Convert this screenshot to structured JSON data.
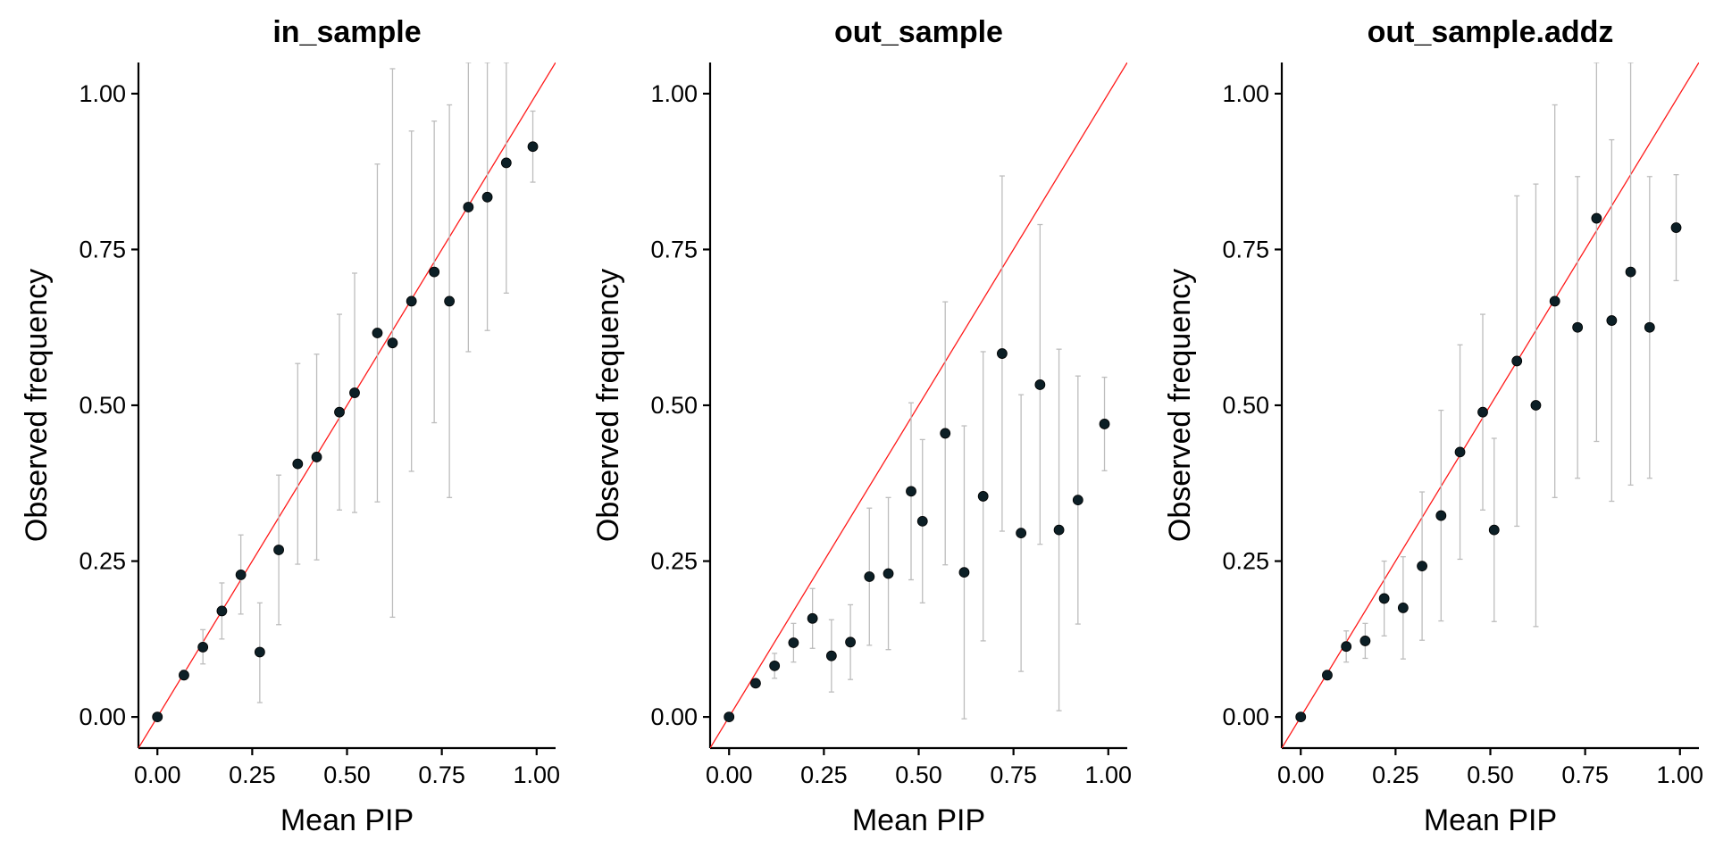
{
  "chart_data": [
    {
      "type": "scatter",
      "title": "in_sample",
      "xlabel": "Mean PIP",
      "ylabel": "Observed frequency",
      "xlim": [
        -0.05,
        1.05
      ],
      "ylim": [
        -0.05,
        1.05
      ],
      "xticks": [
        "0.00",
        "0.25",
        "0.50",
        "0.75",
        "1.00"
      ],
      "yticks": [
        "0.00",
        "0.25",
        "0.50",
        "0.75",
        "1.00"
      ],
      "reference_line": "y = x",
      "reference_color": "#ff1a1a",
      "points": [
        {
          "x": 0.0,
          "y": 0.0,
          "lo": 0.0,
          "hi": 0.0
        },
        {
          "x": 0.07,
          "y": 0.067,
          "lo": 0.06,
          "hi": 0.075
        },
        {
          "x": 0.12,
          "y": 0.112,
          "lo": 0.085,
          "hi": 0.14
        },
        {
          "x": 0.17,
          "y": 0.17,
          "lo": 0.125,
          "hi": 0.215
        },
        {
          "x": 0.22,
          "y": 0.228,
          "lo": 0.165,
          "hi": 0.292
        },
        {
          "x": 0.27,
          "y": 0.104,
          "lo": 0.023,
          "hi": 0.183
        },
        {
          "x": 0.32,
          "y": 0.268,
          "lo": 0.148,
          "hi": 0.388
        },
        {
          "x": 0.37,
          "y": 0.406,
          "lo": 0.245,
          "hi": 0.567
        },
        {
          "x": 0.42,
          "y": 0.417,
          "lo": 0.252,
          "hi": 0.582
        },
        {
          "x": 0.48,
          "y": 0.489,
          "lo": 0.332,
          "hi": 0.646
        },
        {
          "x": 0.52,
          "y": 0.52,
          "lo": 0.328,
          "hi": 0.712
        },
        {
          "x": 0.58,
          "y": 0.616,
          "lo": 0.345,
          "hi": 0.887
        },
        {
          "x": 0.62,
          "y": 0.6,
          "lo": 0.16,
          "hi": 1.04
        },
        {
          "x": 0.67,
          "y": 0.667,
          "lo": 0.394,
          "hi": 0.94
        },
        {
          "x": 0.73,
          "y": 0.714,
          "lo": 0.472,
          "hi": 0.956
        },
        {
          "x": 0.77,
          "y": 0.667,
          "lo": 0.352,
          "hi": 0.982
        },
        {
          "x": 0.82,
          "y": 0.818,
          "lo": 0.586,
          "hi": 1.05
        },
        {
          "x": 0.87,
          "y": 0.834,
          "lo": 0.62,
          "hi": 1.05
        },
        {
          "x": 0.92,
          "y": 0.889,
          "lo": 0.68,
          "hi": 1.05
        },
        {
          "x": 0.99,
          "y": 0.915,
          "lo": 0.858,
          "hi": 0.972
        }
      ]
    },
    {
      "type": "scatter",
      "title": "out_sample",
      "xlabel": "Mean PIP",
      "ylabel": "Observed frequency",
      "xlim": [
        -0.05,
        1.05
      ],
      "ylim": [
        -0.05,
        1.05
      ],
      "xticks": [
        "0.00",
        "0.25",
        "0.50",
        "0.75",
        "1.00"
      ],
      "yticks": [
        "0.00",
        "0.25",
        "0.50",
        "0.75",
        "1.00"
      ],
      "reference_line": "y = x",
      "reference_color": "#ff1a1a",
      "points": [
        {
          "x": 0.0,
          "y": 0.0,
          "lo": 0.0,
          "hi": 0.0
        },
        {
          "x": 0.07,
          "y": 0.054,
          "lo": 0.048,
          "hi": 0.06
        },
        {
          "x": 0.12,
          "y": 0.082,
          "lo": 0.062,
          "hi": 0.102
        },
        {
          "x": 0.17,
          "y": 0.119,
          "lo": 0.088,
          "hi": 0.15
        },
        {
          "x": 0.22,
          "y": 0.158,
          "lo": 0.11,
          "hi": 0.206
        },
        {
          "x": 0.27,
          "y": 0.098,
          "lo": 0.04,
          "hi": 0.156
        },
        {
          "x": 0.32,
          "y": 0.12,
          "lo": 0.06,
          "hi": 0.18
        },
        {
          "x": 0.37,
          "y": 0.225,
          "lo": 0.115,
          "hi": 0.335
        },
        {
          "x": 0.42,
          "y": 0.23,
          "lo": 0.108,
          "hi": 0.352
        },
        {
          "x": 0.48,
          "y": 0.362,
          "lo": 0.22,
          "hi": 0.504
        },
        {
          "x": 0.51,
          "y": 0.314,
          "lo": 0.183,
          "hi": 0.445
        },
        {
          "x": 0.57,
          "y": 0.455,
          "lo": 0.244,
          "hi": 0.666
        },
        {
          "x": 0.62,
          "y": 0.232,
          "lo": -0.003,
          "hi": 0.467
        },
        {
          "x": 0.67,
          "y": 0.354,
          "lo": 0.122,
          "hi": 0.586
        },
        {
          "x": 0.72,
          "y": 0.583,
          "lo": 0.298,
          "hi": 0.868
        },
        {
          "x": 0.77,
          "y": 0.295,
          "lo": 0.073,
          "hi": 0.517
        },
        {
          "x": 0.82,
          "y": 0.533,
          "lo": 0.277,
          "hi": 0.79
        },
        {
          "x": 0.87,
          "y": 0.3,
          "lo": 0.01,
          "hi": 0.59
        },
        {
          "x": 0.92,
          "y": 0.348,
          "lo": 0.149,
          "hi": 0.547
        },
        {
          "x": 0.99,
          "y": 0.47,
          "lo": 0.395,
          "hi": 0.545
        }
      ]
    },
    {
      "type": "scatter",
      "title": "out_sample.addz",
      "xlabel": "Mean PIP",
      "ylabel": "Observed frequency",
      "xlim": [
        -0.05,
        1.05
      ],
      "ylim": [
        -0.05,
        1.05
      ],
      "xticks": [
        "0.00",
        "0.25",
        "0.50",
        "0.75",
        "1.00"
      ],
      "yticks": [
        "0.00",
        "0.25",
        "0.50",
        "0.75",
        "1.00"
      ],
      "reference_line": "y = x",
      "reference_color": "#ff1a1a",
      "points": [
        {
          "x": 0.0,
          "y": 0.0,
          "lo": 0.0,
          "hi": 0.0
        },
        {
          "x": 0.07,
          "y": 0.067,
          "lo": 0.06,
          "hi": 0.074
        },
        {
          "x": 0.12,
          "y": 0.113,
          "lo": 0.088,
          "hi": 0.138
        },
        {
          "x": 0.17,
          "y": 0.122,
          "lo": 0.094,
          "hi": 0.15
        },
        {
          "x": 0.22,
          "y": 0.19,
          "lo": 0.13,
          "hi": 0.25
        },
        {
          "x": 0.27,
          "y": 0.175,
          "lo": 0.093,
          "hi": 0.257
        },
        {
          "x": 0.32,
          "y": 0.242,
          "lo": 0.123,
          "hi": 0.361
        },
        {
          "x": 0.37,
          "y": 0.323,
          "lo": 0.154,
          "hi": 0.492
        },
        {
          "x": 0.42,
          "y": 0.425,
          "lo": 0.253,
          "hi": 0.597
        },
        {
          "x": 0.48,
          "y": 0.489,
          "lo": 0.332,
          "hi": 0.646
        },
        {
          "x": 0.51,
          "y": 0.3,
          "lo": 0.153,
          "hi": 0.447
        },
        {
          "x": 0.57,
          "y": 0.571,
          "lo": 0.306,
          "hi": 0.836
        },
        {
          "x": 0.62,
          "y": 0.5,
          "lo": 0.145,
          "hi": 0.855
        },
        {
          "x": 0.67,
          "y": 0.667,
          "lo": 0.352,
          "hi": 0.982
        },
        {
          "x": 0.73,
          "y": 0.625,
          "lo": 0.383,
          "hi": 0.867
        },
        {
          "x": 0.78,
          "y": 0.8,
          "lo": 0.442,
          "hi": 1.05
        },
        {
          "x": 0.82,
          "y": 0.636,
          "lo": 0.346,
          "hi": 0.926
        },
        {
          "x": 0.87,
          "y": 0.714,
          "lo": 0.372,
          "hi": 1.05
        },
        {
          "x": 0.92,
          "y": 0.625,
          "lo": 0.383,
          "hi": 0.867
        },
        {
          "x": 0.99,
          "y": 0.785,
          "lo": 0.7,
          "hi": 0.87
        }
      ]
    }
  ]
}
